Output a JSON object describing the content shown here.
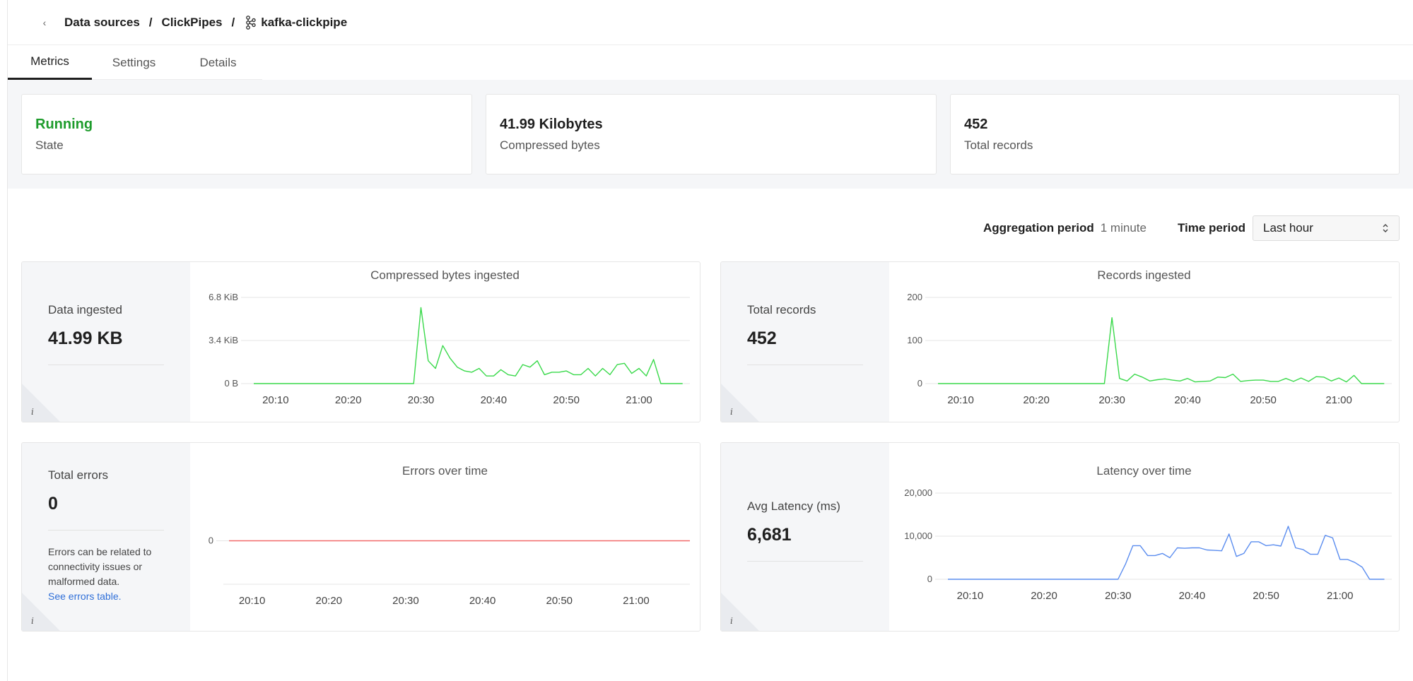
{
  "breadcrumb": {
    "items": [
      "Data sources",
      "ClickPipes",
      "kafka-clickpipe"
    ],
    "separator": "/",
    "back_icon": "chevron-left-icon",
    "pipe_icon": "kafka-icon"
  },
  "tabs": [
    {
      "label": "Metrics",
      "active": true
    },
    {
      "label": "Settings",
      "active": false
    },
    {
      "label": "Details",
      "active": false
    }
  ],
  "summary": [
    {
      "value": "Running",
      "label": "State",
      "color": "#1e9c2c"
    },
    {
      "value": "41.99 Kilobytes",
      "label": "Compressed bytes"
    },
    {
      "value": "452",
      "label": "Total records"
    }
  ],
  "controls": {
    "aggregation_label": "Aggregation period",
    "aggregation_value": "1 minute",
    "time_label": "Time period",
    "time_value": "Last hour",
    "select_icon": "chevron-up-down-icon"
  },
  "panels": {
    "data": {
      "stat_title": "Data ingested",
      "stat_value": "41.99 KB"
    },
    "records": {
      "stat_title": "Total records",
      "stat_value": "452"
    },
    "errors": {
      "stat_title": "Total errors",
      "stat_value": "0",
      "note": "Errors can be related to connectivity issues or malformed data.",
      "link": "See errors table."
    },
    "latency": {
      "stat_title": "Avg Latency (ms)",
      "stat_value": "6,681"
    }
  },
  "chart_data": [
    {
      "type": "line",
      "title": "Compressed bytes ingested",
      "color": "#39d94a",
      "x_ticks": [
        "20:10",
        "20:20",
        "20:30",
        "20:40",
        "20:50",
        "21:00"
      ],
      "y_ticks": [
        {
          "label": "0 B",
          "value": 0
        },
        {
          "label": "3.4 KiB",
          "value": 3.4
        },
        {
          "label": "6.8 KiB",
          "value": 6.8
        }
      ],
      "ylim": [
        0,
        6.8
      ],
      "xlim": [
        0,
        60
      ],
      "x_tick_positions": [
        3,
        13,
        23,
        33,
        43,
        53
      ],
      "x": [
        0,
        1,
        2,
        3,
        4,
        5,
        6,
        7,
        8,
        9,
        10,
        11,
        12,
        13,
        14,
        15,
        16,
        17,
        18,
        19,
        20,
        21,
        22,
        23,
        24,
        25,
        26,
        27,
        28,
        29,
        30,
        31,
        32,
        33,
        34,
        35,
        36,
        37,
        38,
        39,
        40,
        41,
        42,
        43,
        44,
        45,
        46,
        47,
        48,
        49,
        50,
        51,
        52,
        53,
        54,
        55,
        56,
        57,
        58,
        59
      ],
      "values": [
        0,
        0,
        0,
        0,
        0,
        0,
        0,
        0,
        0,
        0,
        0,
        0,
        0,
        0,
        0,
        0,
        0,
        0,
        0,
        0,
        0,
        0,
        0,
        6.0,
        1.8,
        1.2,
        3.0,
        2.0,
        1.3,
        1.0,
        0.9,
        1.2,
        0.6,
        0.6,
        1.1,
        0.7,
        0.6,
        1.5,
        1.3,
        1.8,
        0.7,
        0.9,
        0.9,
        1.0,
        0.7,
        0.7,
        1.2,
        0.6,
        1.2,
        0.7,
        1.5,
        1.6,
        0.8,
        1.2,
        0.6,
        1.9,
        0.0,
        0.0,
        0.0,
        0.0
      ]
    },
    {
      "type": "line",
      "title": "Records ingested",
      "color": "#39d94a",
      "x_ticks": [
        "20:10",
        "20:20",
        "20:30",
        "20:40",
        "20:50",
        "21:00"
      ],
      "y_ticks": [
        {
          "label": "0",
          "value": 0
        },
        {
          "label": "100",
          "value": 100
        },
        {
          "label": "200",
          "value": 200
        }
      ],
      "ylim": [
        0,
        200
      ],
      "xlim": [
        0,
        60
      ],
      "x_tick_positions": [
        3,
        13,
        23,
        33,
        43,
        53
      ],
      "x": [
        0,
        1,
        2,
        3,
        4,
        5,
        6,
        7,
        8,
        9,
        10,
        11,
        12,
        13,
        14,
        15,
        16,
        17,
        18,
        19,
        20,
        21,
        22,
        23,
        24,
        25,
        26,
        27,
        28,
        29,
        30,
        31,
        32,
        33,
        34,
        35,
        36,
        37,
        38,
        39,
        40,
        41,
        42,
        43,
        44,
        45,
        46,
        47,
        48,
        49,
        50,
        51,
        52,
        53,
        54,
        55,
        56,
        57,
        58,
        59
      ],
      "values": [
        0,
        0,
        0,
        0,
        0,
        0,
        0,
        0,
        0,
        0,
        0,
        0,
        0,
        0,
        0,
        0,
        0,
        0,
        0,
        0,
        0,
        0,
        0,
        153,
        12,
        6,
        22,
        15,
        6,
        9,
        11,
        8,
        6,
        12,
        4,
        5,
        6,
        15,
        14,
        22,
        5,
        7,
        8,
        8,
        5,
        5,
        12,
        5,
        13,
        5,
        16,
        15,
        6,
        13,
        4,
        19,
        0,
        0,
        0,
        0
      ]
    },
    {
      "type": "line",
      "title": "Errors over time",
      "color": "#f26b6b",
      "x_ticks": [
        "20:10",
        "20:20",
        "20:30",
        "20:40",
        "20:50",
        "21:00"
      ],
      "y_ticks": [
        {
          "label": "0",
          "value": 0
        }
      ],
      "ylim": [
        -1,
        1
      ],
      "xlim": [
        0,
        60
      ],
      "x_tick_positions": [
        3,
        13,
        23,
        33,
        43,
        53
      ],
      "x": [
        0,
        60
      ],
      "values": [
        0,
        0
      ]
    },
    {
      "type": "line",
      "title": "Latency over time",
      "color": "#5b8def",
      "x_ticks": [
        "20:10",
        "20:20",
        "20:30",
        "20:40",
        "20:50",
        "21:00"
      ],
      "y_ticks": [
        {
          "label": "0",
          "value": 0
        },
        {
          "label": "10,000",
          "value": 10000
        },
        {
          "label": "20,000",
          "value": 20000
        }
      ],
      "ylim": [
        0,
        20000
      ],
      "xlim": [
        0,
        60
      ],
      "x_tick_positions": [
        3,
        13,
        23,
        33,
        43,
        53
      ],
      "x": [
        0,
        1,
        2,
        3,
        4,
        5,
        6,
        7,
        8,
        9,
        10,
        11,
        12,
        13,
        14,
        15,
        16,
        17,
        18,
        19,
        20,
        21,
        22,
        23,
        24,
        25,
        26,
        27,
        28,
        29,
        30,
        31,
        32,
        33,
        34,
        35,
        36,
        37,
        38,
        39,
        40,
        41,
        42,
        43,
        44,
        45,
        46,
        47,
        48,
        49,
        50,
        51,
        52,
        53,
        54,
        55,
        56,
        57,
        58,
        59
      ],
      "values": [
        0,
        0,
        0,
        0,
        0,
        0,
        0,
        0,
        0,
        0,
        0,
        0,
        0,
        0,
        0,
        0,
        0,
        0,
        0,
        0,
        0,
        0,
        0,
        0,
        3500,
        7800,
        7800,
        5500,
        5500,
        6000,
        5000,
        7300,
        7200,
        7300,
        7300,
        6800,
        6700,
        6600,
        10500,
        5300,
        6000,
        8700,
        8700,
        7800,
        8000,
        7700,
        12300,
        7300,
        6900,
        5800,
        5800,
        10200,
        9600,
        4600,
        4600,
        3900,
        2800,
        0,
        0,
        0
      ]
    }
  ]
}
